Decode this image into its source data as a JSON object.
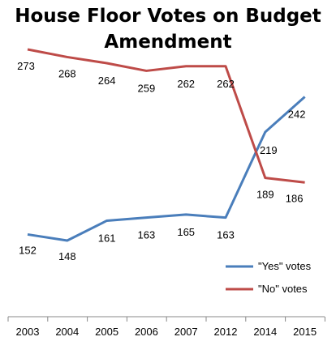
{
  "chart_data": {
    "type": "line",
    "title_lines": [
      "House Floor Votes on Budget",
      "Amendment"
    ],
    "categories": [
      "2003",
      "2004",
      "2005",
      "2006",
      "2007",
      "2012",
      "2014",
      "2015"
    ],
    "series": [
      {
        "name": "\"Yes\" votes",
        "color": "#4a7ebb",
        "values": [
          152,
          148,
          161,
          163,
          165,
          163,
          219,
          242
        ]
      },
      {
        "name": "\"No\" votes",
        "color": "#be4b48",
        "values": [
          273,
          268,
          264,
          259,
          262,
          262,
          189,
          186
        ]
      }
    ],
    "legend_position": "bottom-right",
    "grid": false
  }
}
